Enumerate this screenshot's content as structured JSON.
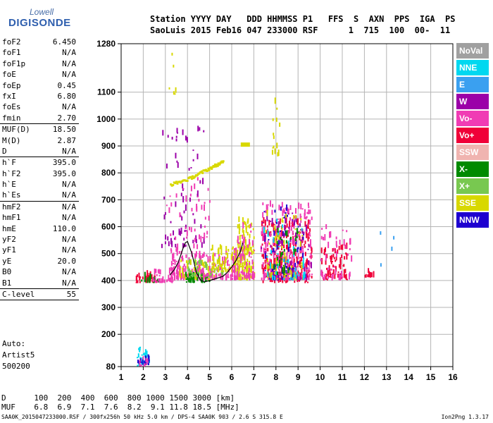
{
  "logo": {
    "line1": "Lowell",
    "line2": "DIGISONDE"
  },
  "header": {
    "line1": "Station YYYY DAY   DDD HHMMSS P1   FFS  S  AXN  PPS  IGA  PS",
    "line2": "SaoLuis 2015 Feb16 047 233000 RSF      1  715  100  00-  11"
  },
  "params": [
    {
      "name": "foF2",
      "value": "6.450"
    },
    {
      "name": "foF1",
      "value": "N/A"
    },
    {
      "name": "foF1p",
      "value": "N/A"
    },
    {
      "name": "foE",
      "value": "N/A"
    },
    {
      "name": "foEp",
      "value": "0.45"
    },
    {
      "name": "fxI",
      "value": "6.80"
    },
    {
      "name": "foEs",
      "value": "N/A"
    },
    {
      "name": "fmin",
      "value": "2.70",
      "sep": true
    },
    {
      "name": "MUF(D)",
      "value": "18.50"
    },
    {
      "name": "M(D)",
      "value": "2.87"
    },
    {
      "name": "D",
      "value": "N/A",
      "sep": true
    },
    {
      "name": "h`F",
      "value": "395.0"
    },
    {
      "name": "h`F2",
      "value": "395.0"
    },
    {
      "name": "h`E",
      "value": "N/A"
    },
    {
      "name": "h`Es",
      "value": "N/A",
      "sep": true
    },
    {
      "name": "hmF2",
      "value": "N/A"
    },
    {
      "name": "hmF1",
      "value": "N/A"
    },
    {
      "name": "hmE",
      "value": "110.0"
    },
    {
      "name": "yF2",
      "value": "N/A"
    },
    {
      "name": "yF1",
      "value": "N/A"
    },
    {
      "name": "yE",
      "value": "20.0"
    },
    {
      "name": "B0",
      "value": "N/A"
    },
    {
      "name": "B1",
      "value": "N/A",
      "sep": true
    },
    {
      "name": "C-level",
      "value": "55",
      "sep": true
    }
  ],
  "auto": {
    "line1": "Auto:",
    "line2": "Artist5",
    "line3": "500200"
  },
  "legend": [
    {
      "label": "NoVal",
      "color": "#a0a0a0"
    },
    {
      "label": "NNE",
      "color": "#00d8f0"
    },
    {
      "label": "E",
      "color": "#3aa0f0"
    },
    {
      "label": "W",
      "color": "#9b00a8"
    },
    {
      "label": "Vo-",
      "color": "#f03cb4"
    },
    {
      "label": "Vo+",
      "color": "#f00038"
    },
    {
      "label": "SSW",
      "color": "#f0b4b0"
    },
    {
      "label": "X-",
      "color": "#008a00"
    },
    {
      "label": "X+",
      "color": "#78c850"
    },
    {
      "label": "SSE",
      "color": "#d8d800"
    },
    {
      "label": "NNW",
      "color": "#1e00d0"
    }
  ],
  "footer": {
    "d_line": "D      100  200  400  600  800 1000 1500 3000 [km]",
    "muf_line": "MUF    6.8  6.9  7.1  7.6  8.2  9.1 11.8 18.5 [MHz]",
    "credit": "SAA0K_2015047233000.RSF / 300fx256h 50 kHz 5.0 km / DPS-4 SAA0K 903 / 2.6 S 315.8 E",
    "version": "Ion2Png 1.3.17"
  },
  "chart_data": {
    "type": "scatter",
    "xlim": [
      1,
      16
    ],
    "ylim": [
      80,
      1280
    ],
    "xticks": [
      "1",
      "2",
      "3",
      "4",
      "5",
      "6",
      "7",
      "8",
      "9",
      "10",
      "11",
      "12",
      "13",
      "14",
      "15",
      "16"
    ],
    "yticks": [
      "80",
      "200",
      "300",
      "400",
      "500",
      "600",
      "700",
      "800",
      "900",
      "1000",
      "1100",
      "1280"
    ],
    "grid": true,
    "legend_position": "right",
    "trace_f2_x": [
      3.2,
      3.4,
      3.6,
      3.8,
      3.9,
      4.0,
      4.2,
      4.4,
      4.6,
      4.8,
      5.0,
      5.2,
      5.4,
      5.6,
      5.8,
      6.0,
      6.2,
      6.4,
      6.5
    ],
    "trace_f2_y": [
      420,
      440,
      470,
      520,
      540,
      545,
      500,
      430,
      400,
      395,
      400,
      405,
      410,
      415,
      430,
      450,
      475,
      510,
      540
    ],
    "clusters": [
      {
        "color": "#f00038",
        "xr": [
          1.6,
          2.6
        ],
        "yr": [
          390,
          420
        ],
        "n": 40
      },
      {
        "color": "#008a00",
        "xr": [
          1.8,
          2.8
        ],
        "yr": [
          390,
          410
        ],
        "n": 20
      },
      {
        "color": "#f03cb4",
        "xr": [
          2.4,
          3.4
        ],
        "yr": [
          390,
          430
        ],
        "n": 40
      },
      {
        "color": "#f03cb4",
        "xr": [
          3.2,
          4.6
        ],
        "yr": [
          400,
          520
        ],
        "n": 110
      },
      {
        "color": "#d8d800",
        "xr": [
          3.6,
          5.2
        ],
        "yr": [
          400,
          470
        ],
        "n": 70
      },
      {
        "color": "#008a00",
        "xr": [
          3.8,
          5.0
        ],
        "yr": [
          390,
          420
        ],
        "n": 40
      },
      {
        "color": "#78c850",
        "xr": [
          4.0,
          5.6
        ],
        "yr": [
          410,
          470
        ],
        "n": 50
      },
      {
        "color": "#f03cb4",
        "xr": [
          4.4,
          6.4
        ],
        "yr": [
          400,
          500
        ],
        "n": 100
      },
      {
        "color": "#d8d800",
        "xr": [
          5.0,
          6.8
        ],
        "yr": [
          430,
          520
        ],
        "n": 90
      },
      {
        "color": "#d8d800",
        "xr": [
          6.2,
          7.0
        ],
        "yr": [
          400,
          620
        ],
        "n": 120
      },
      {
        "color": "#f03cb4",
        "xr": [
          6.0,
          7.0
        ],
        "yr": [
          400,
          600
        ],
        "n": 80
      },
      {
        "color": "#f00038",
        "xr": [
          7.3,
          9.6
        ],
        "yr": [
          390,
          620
        ],
        "n": 260
      },
      {
        "color": "#f03cb4",
        "xr": [
          7.3,
          9.6
        ],
        "yr": [
          400,
          680
        ],
        "n": 220
      },
      {
        "color": "#1e00d0",
        "xr": [
          7.4,
          9.4
        ],
        "yr": [
          400,
          660
        ],
        "n": 60
      },
      {
        "color": "#9b00a8",
        "xr": [
          7.3,
          9.6
        ],
        "yr": [
          400,
          650
        ],
        "n": 70
      },
      {
        "color": "#d8d800",
        "xr": [
          7.5,
          9.2
        ],
        "yr": [
          400,
          640
        ],
        "n": 60
      },
      {
        "color": "#00d8f0",
        "xr": [
          7.4,
          9.3
        ],
        "yr": [
          400,
          620
        ],
        "n": 40
      },
      {
        "color": "#008a00",
        "xr": [
          7.8,
          9.0
        ],
        "yr": [
          420,
          600
        ],
        "n": 30
      },
      {
        "color": "#f00038",
        "xr": [
          10.0,
          11.2
        ],
        "yr": [
          400,
          520
        ],
        "n": 70
      },
      {
        "color": "#f03cb4",
        "xr": [
          10.0,
          11.4
        ],
        "yr": [
          400,
          600
        ],
        "n": 50
      },
      {
        "color": "#f00038",
        "xr": [
          12.0,
          12.4
        ],
        "yr": [
          410,
          430
        ],
        "n": 8
      },
      {
        "color": "#9b00a8",
        "xr": [
          2.8,
          4.8
        ],
        "yr": [
          520,
          960
        ],
        "n": 70
      },
      {
        "color": "#f03cb4",
        "xr": [
          3.0,
          5.0
        ],
        "yr": [
          540,
          780
        ],
        "n": 40
      },
      {
        "color": "#d8d800",
        "xr": [
          3.0,
          3.6
        ],
        "yr": [
          1090,
          1260
        ],
        "n": 6
      },
      {
        "color": "#d8d800",
        "xr": [
          7.8,
          8.2
        ],
        "yr": [
          860,
          1060
        ],
        "n": 14
      },
      {
        "color": "#00d8f0",
        "xr": [
          1.7,
          2.3
        ],
        "yr": [
          80,
          150
        ],
        "n": 30
      },
      {
        "color": "#1e00d0",
        "xr": [
          1.7,
          2.3
        ],
        "yr": [
          85,
          110
        ],
        "n": 12
      },
      {
        "color": "#f03cb4",
        "xr": [
          1.8,
          2.2
        ],
        "yr": [
          80,
          110
        ],
        "n": 8
      },
      {
        "color": "#3aa0f0",
        "xr": [
          12.5,
          13.4
        ],
        "yr": [
          410,
          600
        ],
        "n": 4
      }
    ],
    "sse_band": {
      "x": [
        3.2,
        4.0,
        4.6,
        5.2,
        5.6
      ],
      "y": [
        760,
        780,
        805,
        830,
        845
      ]
    },
    "sse_blob": {
      "x": 6.6,
      "y": 905
    }
  }
}
